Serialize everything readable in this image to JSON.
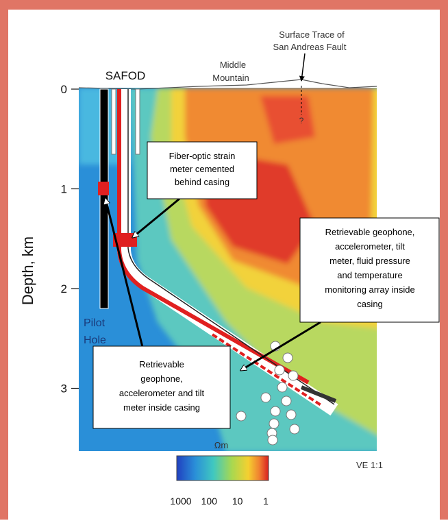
{
  "labels": {
    "safod": "SAFOD",
    "middle_mountain": [
      "Middle",
      "Mountain"
    ],
    "fault_trace": [
      "Surface Trace of",
      "San Andreas Fault"
    ],
    "question": "?",
    "pilot_hole": [
      "Pilot",
      "Hole"
    ],
    "ve": "VE 1:1"
  },
  "depth_axis": {
    "title": "Depth, km",
    "ticks": [
      0,
      1,
      2,
      3
    ]
  },
  "callouts": [
    {
      "lines": [
        "Fiber-optic strain",
        "meter cemented",
        "behind casing"
      ]
    },
    {
      "lines": [
        "Retrievable geophone,",
        "accelerometer, tilt",
        "meter, fluid pressure",
        "and temperature",
        "monitoring array inside",
        "casing"
      ]
    },
    {
      "lines": [
        "Retrievable",
        "geophone,",
        "accelerometer and tilt",
        "meter inside casing"
      ]
    }
  ],
  "colorbar": {
    "unit": "Ωm",
    "labels": [
      "1000",
      "100",
      "10",
      "1"
    ]
  }
}
